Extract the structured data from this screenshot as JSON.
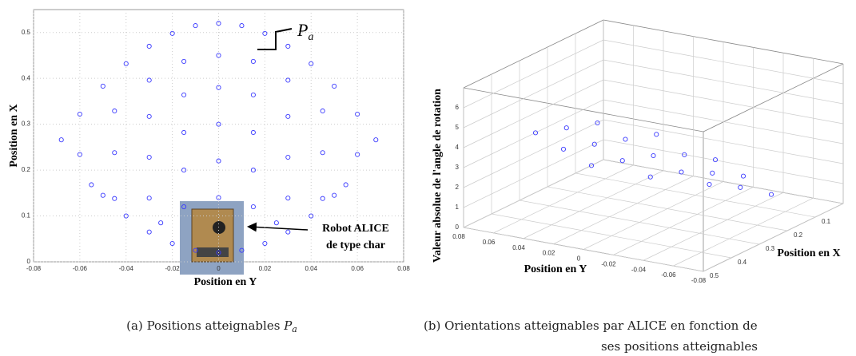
{
  "chart_data": [
    {
      "type": "scatter",
      "xlabel": "Position en Y",
      "ylabel": "Position en X",
      "xlim": [
        -0.08,
        0.08
      ],
      "ylim": [
        0,
        0.55
      ],
      "xticks": [
        -0.08,
        -0.06,
        -0.04,
        -0.02,
        0,
        0.02,
        0.04,
        0.06,
        0.08
      ],
      "yticks": [
        0,
        0.1,
        0.2,
        0.3,
        0.4,
        0.5
      ],
      "grid": true,
      "color": "#3a3aff",
      "x": [
        0,
        -0.01,
        0.01,
        -0.02,
        0.02,
        -0.03,
        0.03,
        -0.04,
        0.04,
        -0.05,
        0.05,
        -0.06,
        0.06,
        -0.068,
        0.068,
        0,
        -0.015,
        0.015,
        -0.03,
        0.03,
        -0.045,
        0.045,
        -0.06,
        0.06,
        0,
        -0.015,
        0.015,
        -0.03,
        0.03,
        -0.045,
        0.045,
        -0.055,
        0.055,
        0,
        -0.015,
        0.015,
        -0.03,
        0.03,
        -0.045,
        0.045,
        0,
        -0.015,
        0.015,
        -0.03,
        0.03,
        0,
        -0.015,
        0.015,
        -0.025,
        0.025,
        0,
        -0.01,
        0.01,
        -0.02,
        0.02,
        -0.03,
        0.03,
        -0.04,
        0.04,
        -0.05,
        0.05
      ],
      "y": [
        0.52,
        0.515,
        0.515,
        0.498,
        0.498,
        0.47,
        0.47,
        0.432,
        0.432,
        0.383,
        0.383,
        0.322,
        0.322,
        0.266,
        0.266,
        0.45,
        0.437,
        0.437,
        0.396,
        0.396,
        0.329,
        0.329,
        0.234,
        0.234,
        0.38,
        0.364,
        0.364,
        0.317,
        0.317,
        0.238,
        0.238,
        0.168,
        0.168,
        0.3,
        0.282,
        0.282,
        0.228,
        0.228,
        0.138,
        0.138,
        0.22,
        0.2,
        0.2,
        0.139,
        0.139,
        0.14,
        0.12,
        0.12,
        0.085,
        0.085,
        0.02,
        0.025,
        0.025,
        0.04,
        0.04,
        0.065,
        0.065,
        0.1,
        0.1,
        0.145,
        0.145
      ],
      "annotation": {
        "symbol": "P",
        "subscript": "a"
      },
      "inset_label": [
        "Robot ALICE",
        "de type char"
      ]
    },
    {
      "type": "scatter3d",
      "xlabel": "Position en Y",
      "ylabel": "Position en X",
      "zlabel": "Valeur absolue de l'angle de rotation",
      "xlim": [
        0.08,
        -0.08
      ],
      "ylim": [
        0.5,
        0
      ],
      "zlim": [
        0,
        7
      ],
      "xticks": [
        0.08,
        0.06,
        0.04,
        0.02,
        0,
        -0.02,
        -0.04,
        -0.06,
        -0.08
      ],
      "yticks": [
        0.1,
        0.2,
        0.3,
        0.4,
        0.5
      ],
      "zticks": [
        0,
        1,
        2,
        3,
        4,
        5,
        6
      ],
      "grid": true,
      "color": "#3a3aff",
      "x": [
        0.06,
        0.06,
        0.06,
        0.03,
        0.03,
        0.03,
        0.03,
        0,
        0,
        0,
        0,
        0,
        -0.03,
        -0.03,
        -0.03,
        -0.03,
        -0.06,
        -0.06,
        -0.06
      ],
      "y": [
        0.15,
        0.25,
        0.35,
        0.1,
        0.2,
        0.3,
        0.4,
        0.05,
        0.15,
        0.25,
        0.35,
        0.45,
        0.1,
        0.2,
        0.3,
        0.4,
        0.15,
        0.25,
        0.35
      ],
      "z": [
        1.0,
        2.5,
        4.0,
        0.5,
        2.0,
        3.5,
        5.0,
        0.2,
        1.5,
        3.0,
        4.5,
        6.0,
        0.8,
        2.2,
        3.8,
        5.5,
        1.2,
        2.8,
        4.3
      ]
    }
  ],
  "captions": [
    {
      "label": "(a)",
      "text": "Positions atteignables",
      "symbol": "P",
      "subscript": "a"
    },
    {
      "label": "(b)",
      "lines": [
        "Orientations atteignables par ALICE en fonction de",
        "ses positions atteignables"
      ]
    }
  ]
}
